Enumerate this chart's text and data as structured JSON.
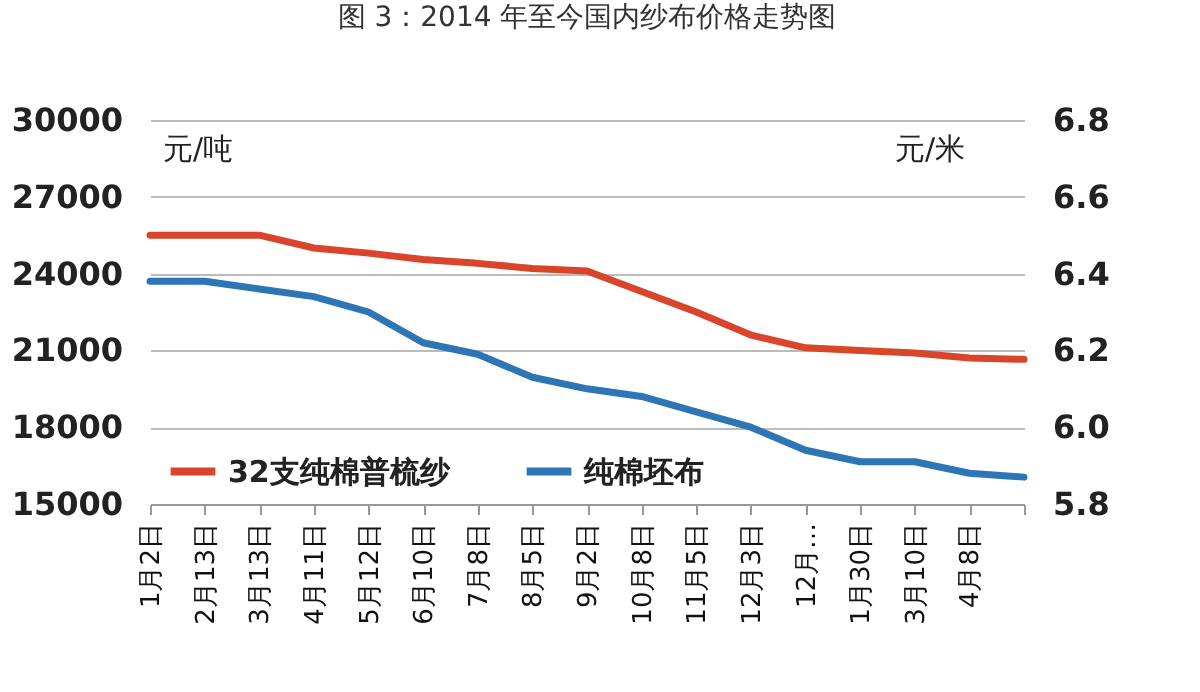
{
  "chart_data": {
    "type": "line",
    "title": "图 3：2014 年至今国内纱布价格走势图",
    "ylabel": "元/吨",
    "y2label": "元/米",
    "categories": [
      "1月2日",
      "2月13日",
      "3月13日",
      "4月11日",
      "5月12日",
      "6月10日",
      "7月8日",
      "8月5日",
      "9月2日",
      "10月8日",
      "11月5日",
      "12月3日",
      "12月…",
      "1月30日",
      "3月10日",
      "4月8日",
      null
    ],
    "ylim": [
      15000,
      30000
    ],
    "yticks": [
      15000,
      18000,
      21000,
      24000,
      27000,
      30000
    ],
    "y2lim": [
      5.8,
      6.8
    ],
    "y2ticks": [
      5.8,
      {
        "value": 6.0,
        "label": "6.0"
      },
      6.2,
      6.4,
      6.6,
      6.8
    ],
    "grid": "y",
    "legend": "bottom left",
    "series": [
      {
        "name": "32支纯棉普梳纱",
        "color": "#d9452b",
        "values": [
          25500,
          25500,
          25500,
          25000,
          24800,
          24550,
          24400,
          24200,
          24100,
          23300,
          22500,
          21600,
          21100,
          21000,
          20900,
          20700,
          20650
        ]
      },
      {
        "name": "纯棉坯布",
        "color": "#2e75b6",
        "axis": "y2",
        "values": [
          6.38,
          6.38,
          6.36,
          6.34,
          6.3,
          6.22,
          6.19,
          6.13,
          6.1,
          6.08,
          6.04,
          6.0,
          5.94,
          5.91,
          5.91,
          5.88,
          5.87
        ]
      }
    ]
  }
}
